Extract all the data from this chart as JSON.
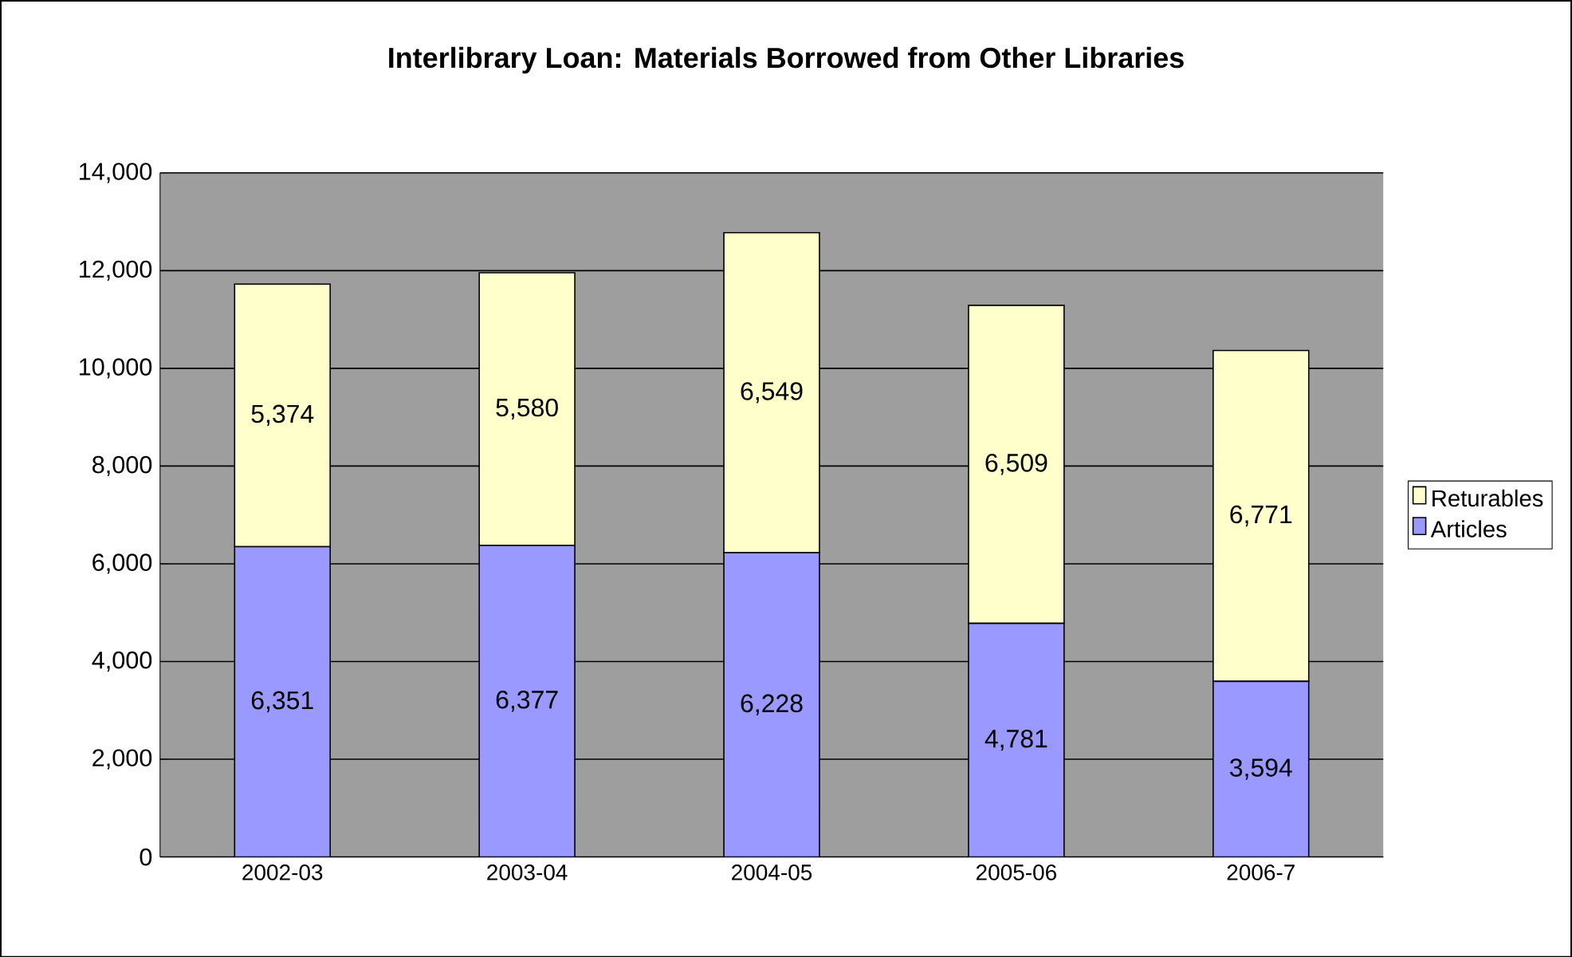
{
  "chart_data": {
    "type": "bar",
    "stacked": true,
    "title": "Interlibrary Loan: Materials Borrowed from Other Libraries",
    "categories": [
      "2002-03",
      "2003-04",
      "2004-05",
      "2005-06",
      "2006-7"
    ],
    "series": [
      {
        "name": "Articles",
        "color": "#9999ff",
        "values": [
          6351,
          6377,
          6228,
          4781,
          3594
        ],
        "value_labels": [
          "6,351",
          "6,377",
          "6,228",
          "4,781",
          "3,594"
        ]
      },
      {
        "name": "Returables",
        "color": "#ffffcc",
        "values": [
          5374,
          5580,
          6549,
          6509,
          6771
        ],
        "value_labels": [
          "5,374",
          "5,580",
          "6,549",
          "6,509",
          "6,771"
        ]
      }
    ],
    "ylim": [
      0,
      14000
    ],
    "yticks": [
      0,
      {
        "value": 2000,
        "label": "2,000"
      },
      {
        "value": 4000,
        "label": "4,000"
      },
      {
        "value": 6000,
        "label": "6,000"
      },
      {
        "value": 8000,
        "label": "8,000"
      },
      {
        "value": 10000,
        "label": "10,000"
      },
      {
        "value": 12000,
        "label": "12,000"
      },
      {
        "value": 14000,
        "label": "14,000"
      }
    ],
    "grid": "y",
    "legend": "right"
  }
}
